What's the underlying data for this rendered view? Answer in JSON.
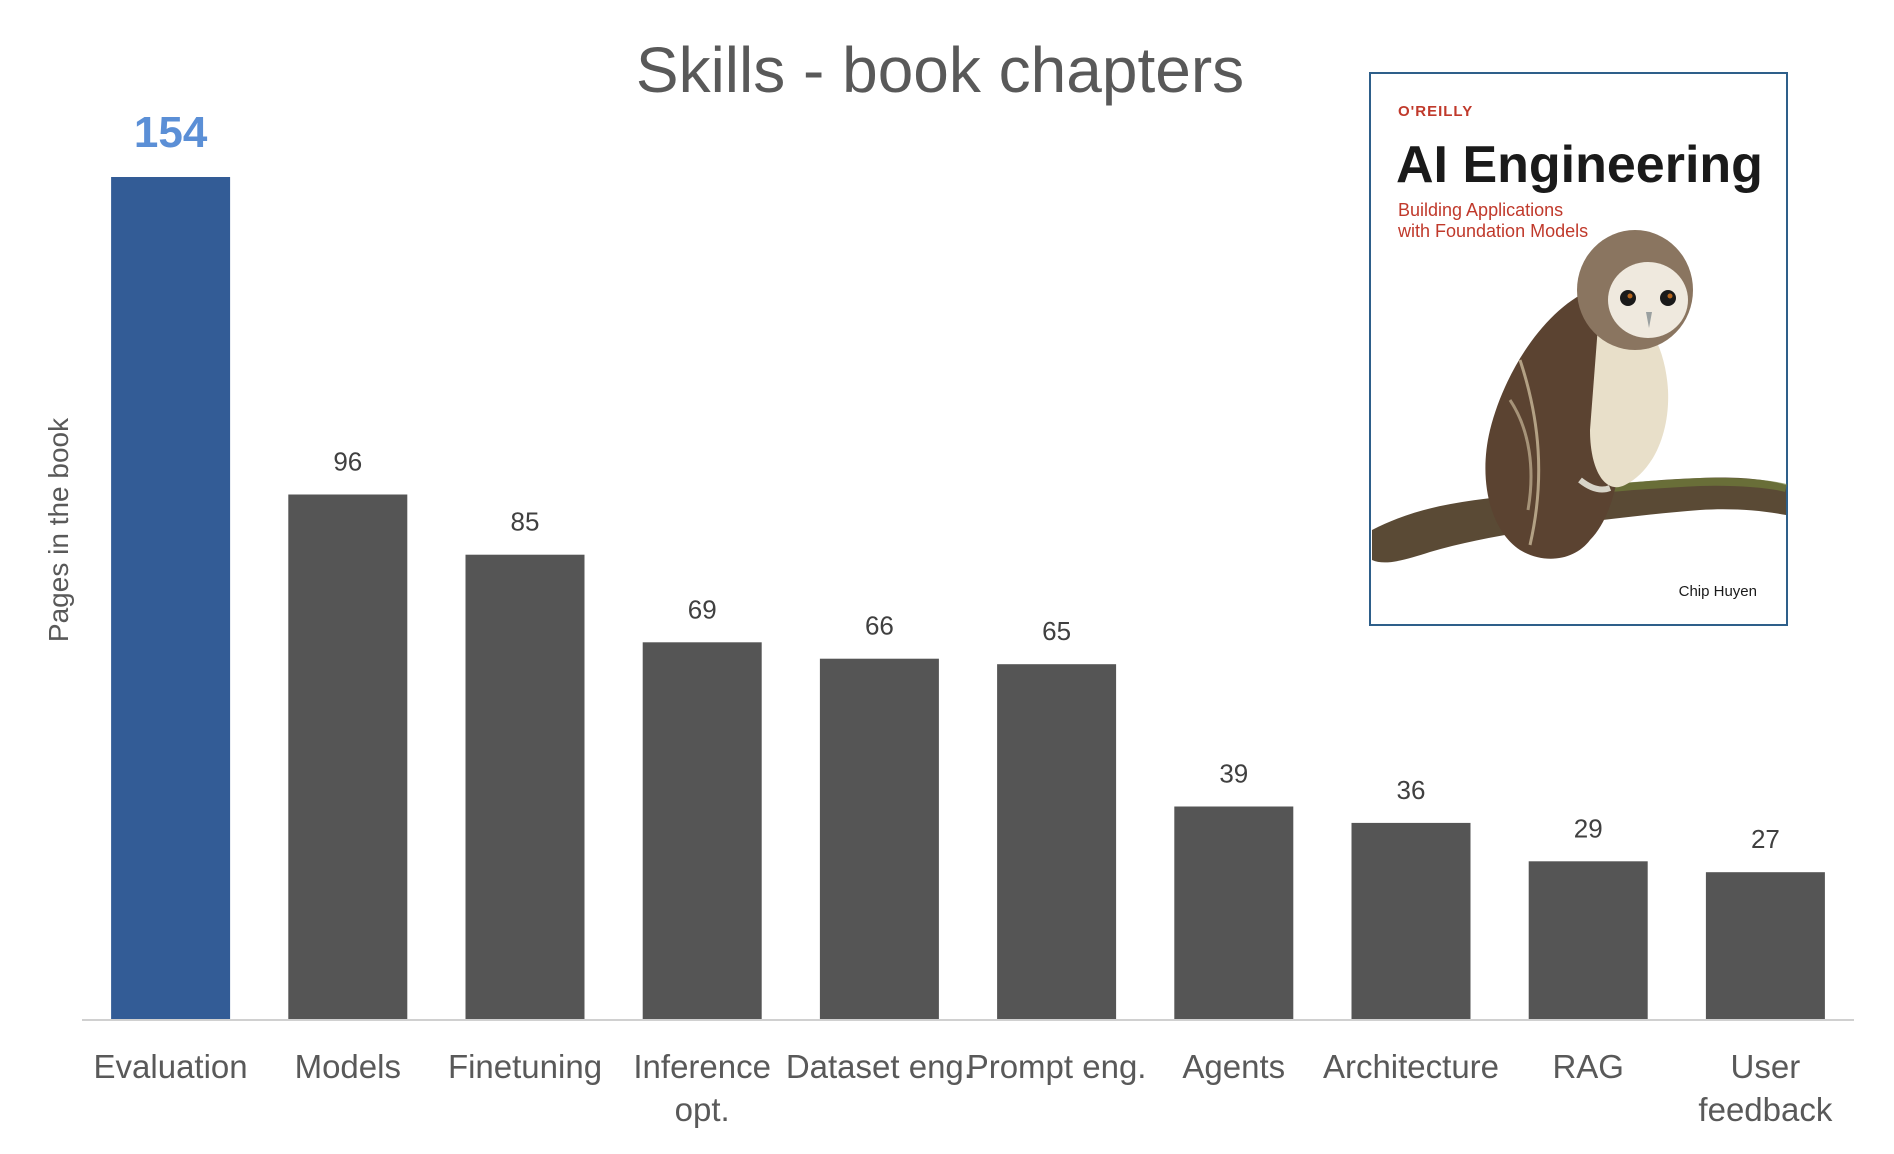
{
  "chart_data": {
    "type": "bar",
    "title": "Skills - book chapters",
    "ylabel": "Pages in the book",
    "xlabel": "",
    "ylim": [
      0,
      154
    ],
    "grid": false,
    "categories": [
      [
        "Evaluation"
      ],
      [
        "Models"
      ],
      [
        "Finetuning"
      ],
      [
        "Inference",
        "opt."
      ],
      [
        "Dataset eng."
      ],
      [
        "Prompt eng."
      ],
      [
        "Agents"
      ],
      [
        "Architecture"
      ],
      [
        "RAG"
      ],
      [
        "User",
        "feedback"
      ]
    ],
    "values": [
      154,
      96,
      85,
      69,
      66,
      65,
      39,
      36,
      29,
      27
    ],
    "highlight_index": 0,
    "colors": {
      "highlight": "#335c96",
      "bar": "#555555",
      "highlight_label": "#5b8fd6"
    }
  },
  "book_cover": {
    "publisher": "O'REILLY",
    "title": "AI Engineering",
    "subtitle_line1": "Building Applications",
    "subtitle_line2": "with Foundation Models",
    "author": "Chip Huyen",
    "border_color": "#2e5f8a"
  }
}
